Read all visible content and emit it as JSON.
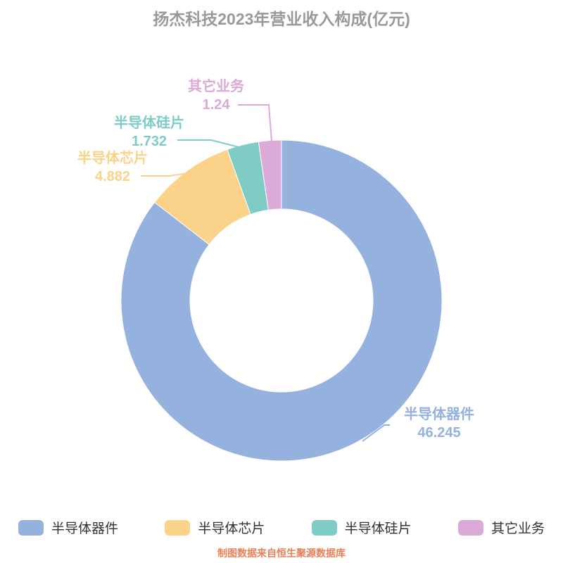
{
  "title": "扬杰科技2023年营业收入构成(亿元)",
  "footer": "制图数据来自恒生聚源数据库",
  "chart_data": {
    "type": "pie",
    "donut": true,
    "title": "扬杰科技2023年营业收入构成(亿元)",
    "unit": "亿元",
    "total": 54.099,
    "start_angle_deg": 0,
    "direction": "clockwise",
    "legend_position": "bottom",
    "items": [
      {
        "label": "半导体器件",
        "value": 46.245,
        "color": "#95b1de"
      },
      {
        "label": "半导体芯片",
        "value": 4.882,
        "color": "#fbd28a"
      },
      {
        "label": "半导体硅片",
        "value": 1.732,
        "color": "#7fccc7"
      },
      {
        "label": "其它业务",
        "value": 1.24,
        "color": "#dcaad8"
      }
    ]
  }
}
